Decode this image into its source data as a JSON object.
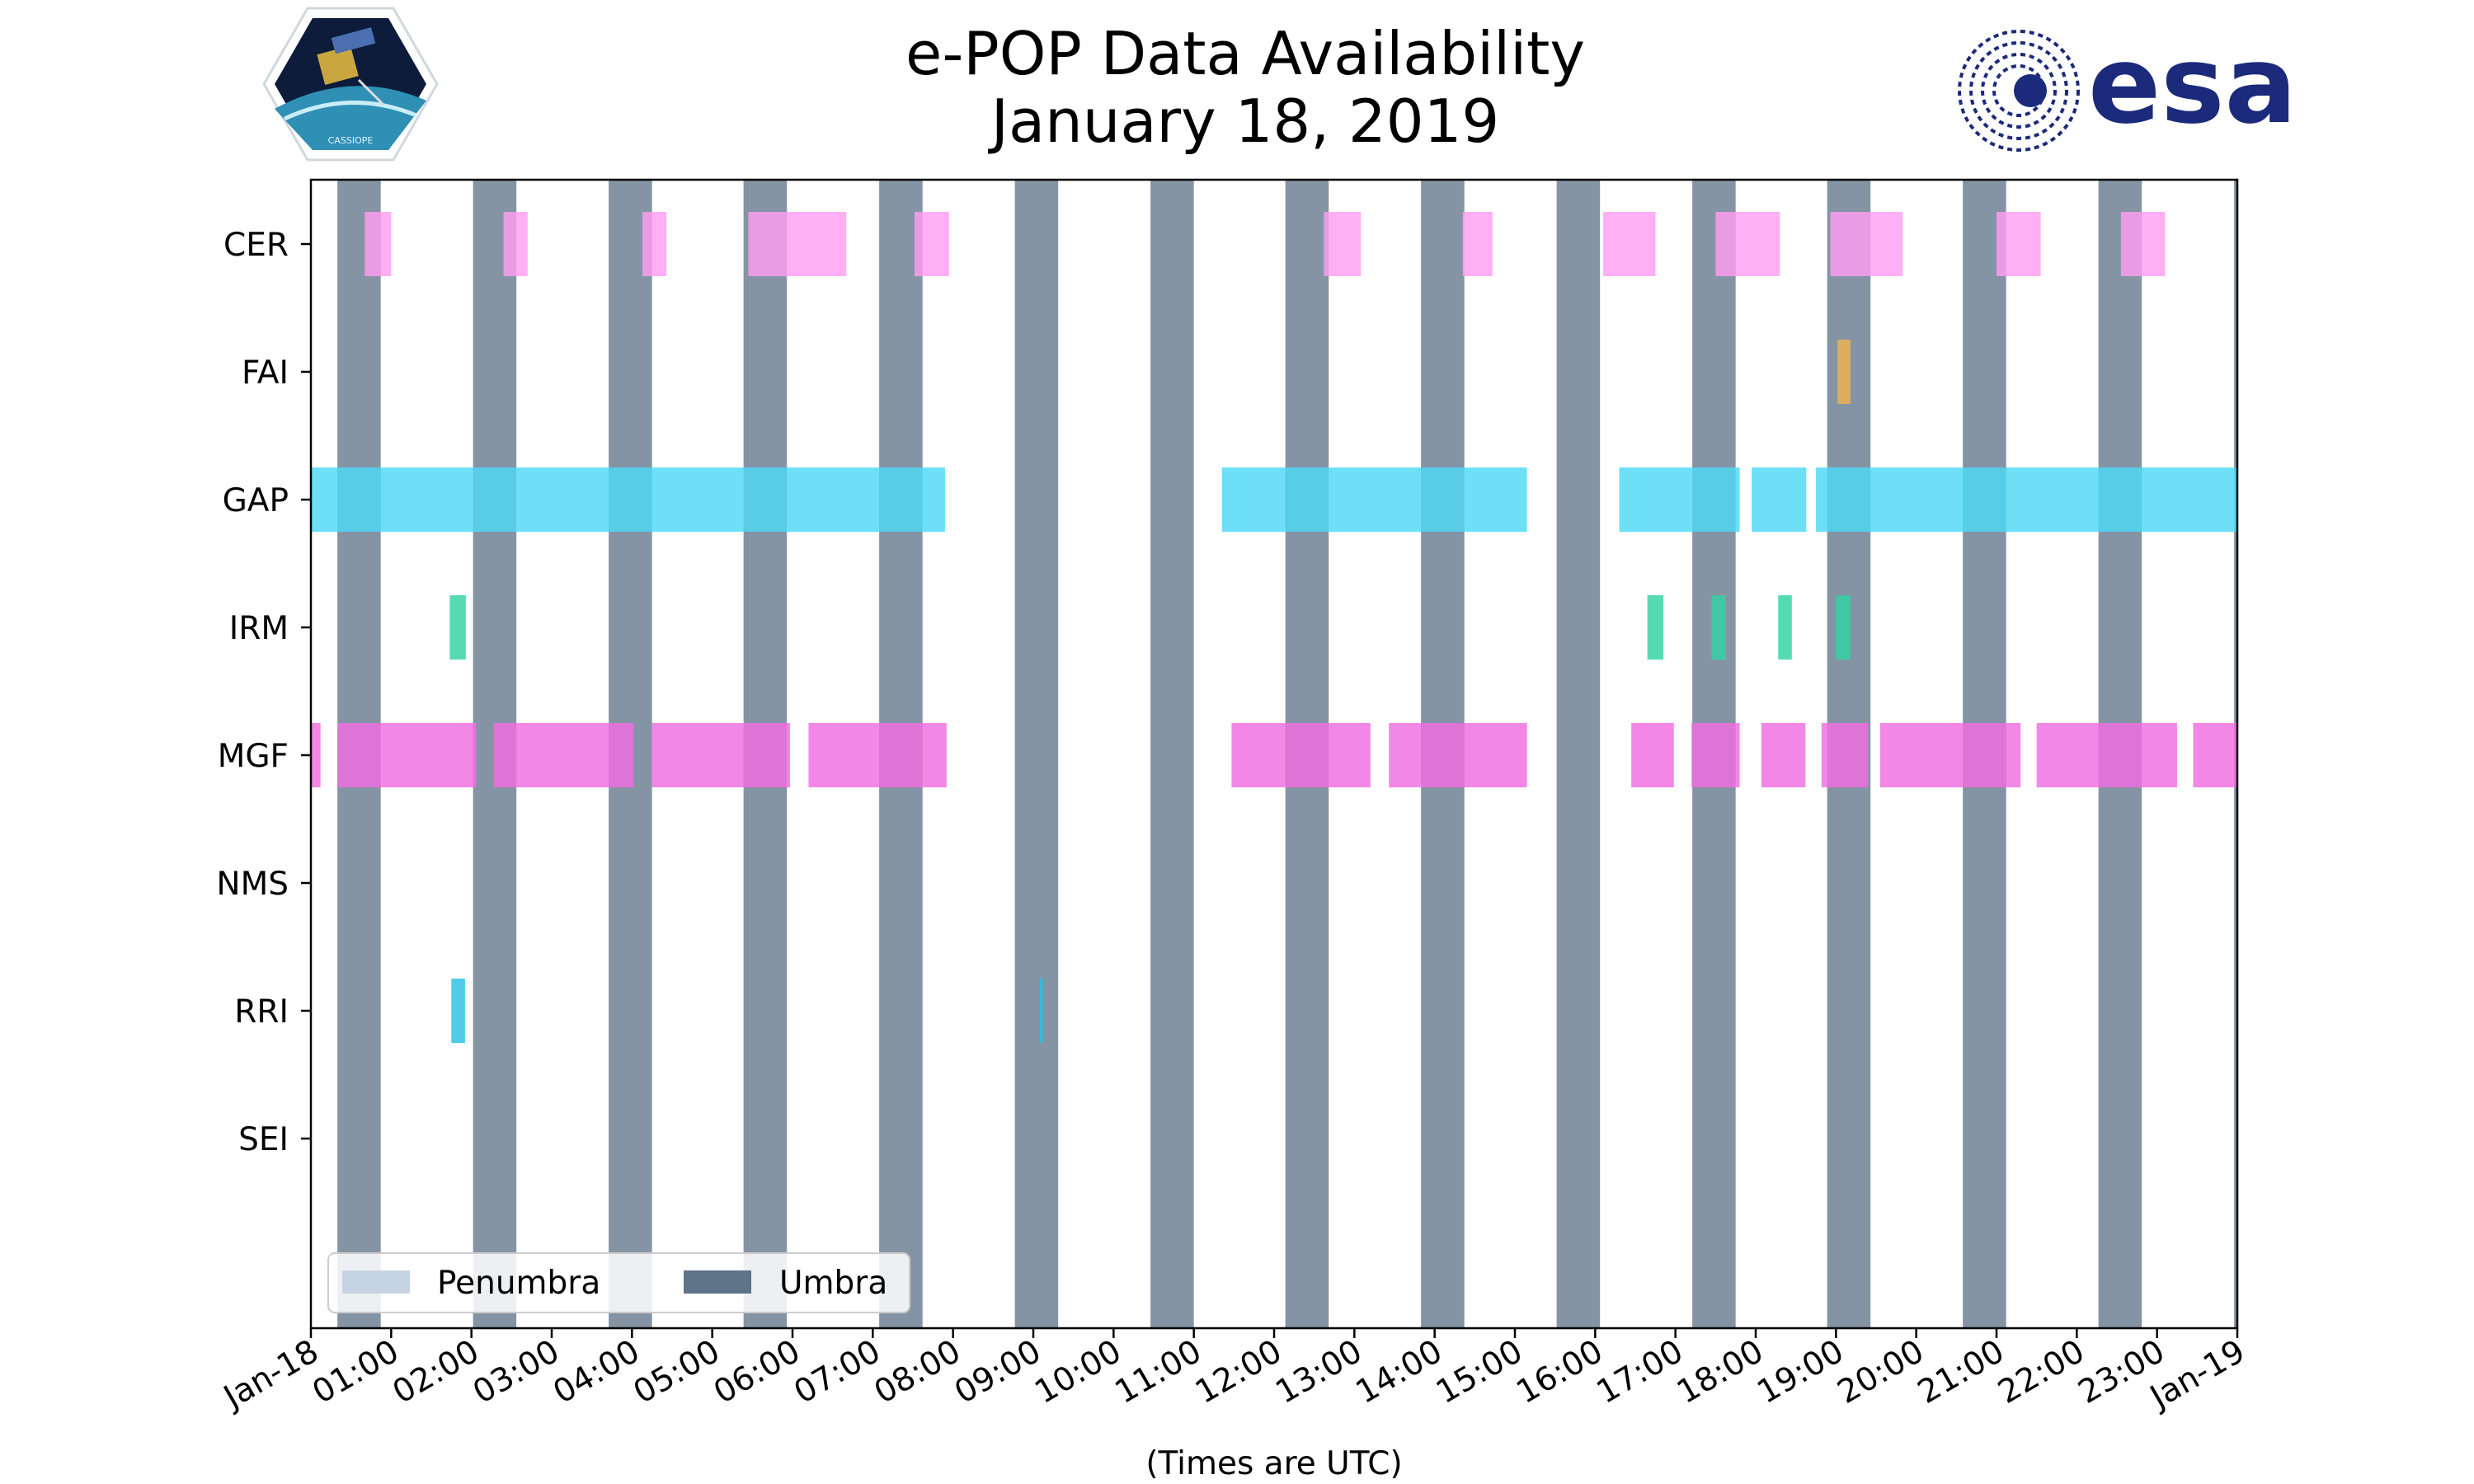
{
  "header": {
    "title_line1": "e-POP Data Availability",
    "title_line2": "January 18, 2019",
    "left_logo": "cassiope-mission-logo",
    "left_logo_text": "CASSIOPE",
    "right_logo": "esa-logo",
    "right_logo_text": "esa"
  },
  "colors": {
    "umbra": "#5f7389",
    "penumbra": "#c6d3e3",
    "CER": "#ff9df0",
    "FAI": "#efb24e",
    "GAP": "#4dd9f7",
    "IRM": "#2fd3a0",
    "MGF": "#f06ce0",
    "NMS": "#999999",
    "RRI": "#27c1e3",
    "SEI": "#999999",
    "esa_blue": "#1b2a7a"
  },
  "chart_data": {
    "type": "timeline",
    "xlabel": "(Times are UTC)",
    "ylabel": "",
    "xlim": [
      0,
      24
    ],
    "x_ticks": [
      "Jan-18",
      "01:00",
      "02:00",
      "03:00",
      "04:00",
      "05:00",
      "06:00",
      "07:00",
      "08:00",
      "09:00",
      "10:00",
      "11:00",
      "12:00",
      "13:00",
      "14:00",
      "15:00",
      "16:00",
      "17:00",
      "18:00",
      "19:00",
      "20:00",
      "21:00",
      "22:00",
      "23:00",
      "Jan-19"
    ],
    "categories": [
      "CER",
      "FAI",
      "GAP",
      "IRM",
      "MGF",
      "NMS",
      "RRI",
      "SEI"
    ],
    "legend": {
      "placement": "lower-left",
      "entries": [
        {
          "label": "Penumbra",
          "color_key": "penumbra"
        },
        {
          "label": "Umbra",
          "color_key": "umbra"
        }
      ]
    },
    "umbra_hours": [
      [
        0.33,
        0.87
      ],
      [
        2.02,
        2.56
      ],
      [
        3.71,
        4.25
      ],
      [
        5.39,
        5.93
      ],
      [
        7.08,
        7.62
      ],
      [
        8.77,
        9.31
      ],
      [
        10.46,
        11.0
      ],
      [
        12.14,
        12.68
      ],
      [
        13.83,
        14.37
      ],
      [
        15.52,
        16.06
      ],
      [
        17.21,
        17.75
      ],
      [
        18.89,
        19.43
      ],
      [
        20.58,
        21.12
      ],
      [
        22.27,
        22.81
      ],
      [
        23.96,
        24.0
      ]
    ],
    "penumbra_hours": [],
    "series": [
      {
        "name": "CER",
        "intervals": [
          [
            0.67,
            1.0
          ],
          [
            2.4,
            2.7
          ],
          [
            4.13,
            4.43
          ],
          [
            5.45,
            6.67
          ],
          [
            7.52,
            7.95
          ],
          [
            12.62,
            13.08
          ],
          [
            14.35,
            14.72
          ],
          [
            16.1,
            16.75
          ],
          [
            17.5,
            18.3
          ],
          [
            18.93,
            19.83
          ],
          [
            21.0,
            21.55
          ],
          [
            22.55,
            23.1
          ]
        ]
      },
      {
        "name": "FAI",
        "intervals": [
          [
            19.02,
            19.18
          ]
        ]
      },
      {
        "name": "GAP",
        "intervals": [
          [
            0.0,
            7.9
          ],
          [
            11.35,
            15.15
          ],
          [
            16.3,
            17.8
          ],
          [
            17.95,
            18.63
          ],
          [
            18.75,
            24.0
          ]
        ]
      },
      {
        "name": "IRM",
        "intervals": [
          [
            1.73,
            1.93
          ],
          [
            16.65,
            16.85
          ],
          [
            17.45,
            17.63
          ],
          [
            18.28,
            18.45
          ],
          [
            19.0,
            19.18
          ]
        ]
      },
      {
        "name": "MGF",
        "intervals": [
          [
            0.0,
            0.12
          ],
          [
            0.33,
            2.06
          ],
          [
            2.28,
            4.02
          ],
          [
            4.25,
            5.97
          ],
          [
            6.2,
            7.92
          ],
          [
            11.47,
            13.2
          ],
          [
            13.43,
            15.15
          ],
          [
            16.45,
            16.98
          ],
          [
            17.2,
            17.8
          ],
          [
            18.07,
            18.62
          ],
          [
            18.82,
            19.4
          ],
          [
            19.55,
            21.3
          ],
          [
            21.5,
            23.25
          ],
          [
            23.45,
            24.0
          ]
        ]
      },
      {
        "name": "NMS",
        "intervals": []
      },
      {
        "name": "RRI",
        "intervals": [
          [
            1.75,
            1.92
          ],
          [
            9.08,
            9.12
          ]
        ]
      },
      {
        "name": "SEI",
        "intervals": []
      }
    ]
  }
}
